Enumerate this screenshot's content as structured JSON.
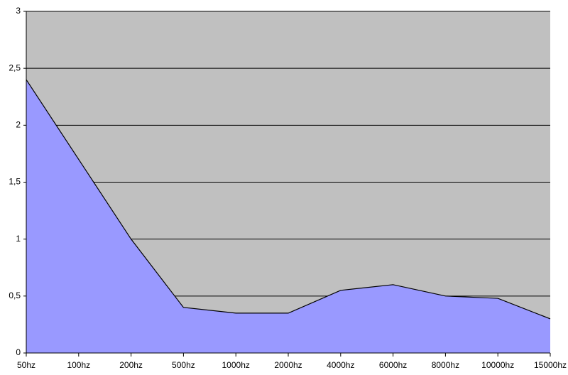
{
  "chart_data": {
    "type": "area",
    "categories": [
      "50hz",
      "100hz",
      "200hz",
      "500hz",
      "1000hz",
      "2000hz",
      "4000hz",
      "6000hz",
      "8000hz",
      "10000hz",
      "15000hz"
    ],
    "values": [
      2.4,
      1.7,
      1.0,
      0.4,
      0.35,
      0.35,
      0.55,
      0.6,
      0.5,
      0.48,
      0.3
    ],
    "color": "#9999ff",
    "line_color": "#000000",
    "plot_background": "#c0c0c0",
    "ylim": [
      0,
      3
    ],
    "yticks": [
      0,
      {
        "value": 0.5,
        "label": "0,5"
      },
      1,
      {
        "value": 1.5,
        "label": "1,5"
      },
      2,
      {
        "value": 2.5,
        "label": "2,5"
      },
      3
    ],
    "grid": true
  }
}
